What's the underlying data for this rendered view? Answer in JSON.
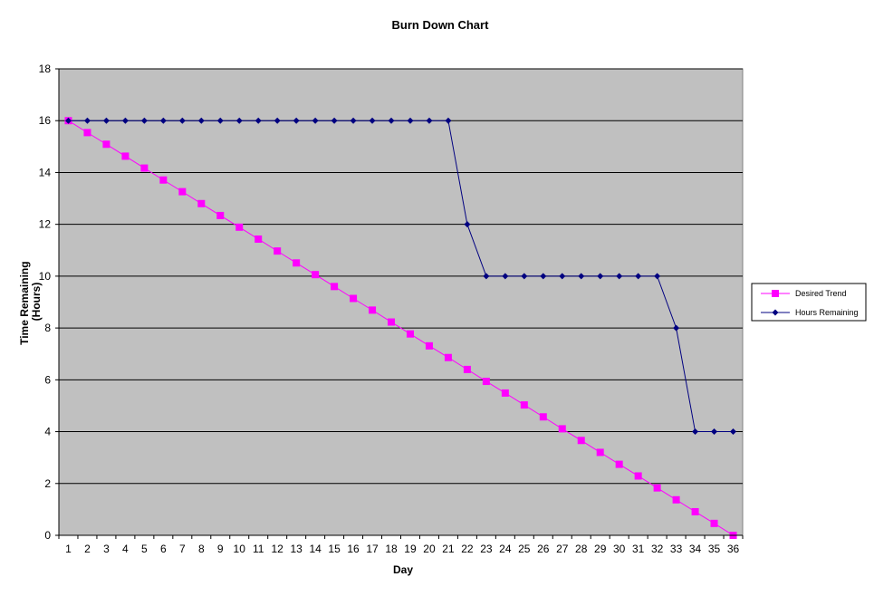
{
  "chart_data": {
    "type": "line",
    "title": "Burn Down Chart",
    "xlabel": "Day",
    "ylabel_lines": [
      "Time Remaining",
      "(Hours)"
    ],
    "ylim": [
      0,
      18
    ],
    "yticks": [
      0,
      2,
      4,
      6,
      8,
      10,
      12,
      14,
      16,
      18
    ],
    "x": [
      1,
      2,
      3,
      4,
      5,
      6,
      7,
      8,
      9,
      10,
      11,
      12,
      13,
      14,
      15,
      16,
      17,
      18,
      19,
      20,
      21,
      22,
      23,
      24,
      25,
      26,
      27,
      28,
      29,
      30,
      31,
      32,
      33,
      34,
      35,
      36
    ],
    "grid": "horizontal",
    "legend_position": "right",
    "plot_background": "#c0c0c0",
    "series": [
      {
        "name": "Desired Trend",
        "color": "#ff00ff",
        "marker": "square",
        "values": [
          16,
          15.54,
          15.09,
          14.63,
          14.17,
          13.71,
          13.26,
          12.8,
          12.34,
          11.89,
          11.43,
          10.97,
          10.51,
          10.06,
          9.6,
          9.14,
          8.69,
          8.23,
          7.77,
          7.31,
          6.86,
          6.4,
          5.94,
          5.49,
          5.03,
          4.57,
          4.11,
          3.66,
          3.2,
          2.74,
          2.29,
          1.83,
          1.37,
          0.91,
          0.46,
          0
        ]
      },
      {
        "name": "Hours Remaining",
        "color": "#000080",
        "marker": "diamond",
        "values": [
          16,
          16,
          16,
          16,
          16,
          16,
          16,
          16,
          16,
          16,
          16,
          16,
          16,
          16,
          16,
          16,
          16,
          16,
          16,
          16,
          16,
          12,
          10,
          10,
          10,
          10,
          10,
          10,
          10,
          10,
          10,
          10,
          8,
          4,
          4,
          4
        ]
      }
    ]
  }
}
